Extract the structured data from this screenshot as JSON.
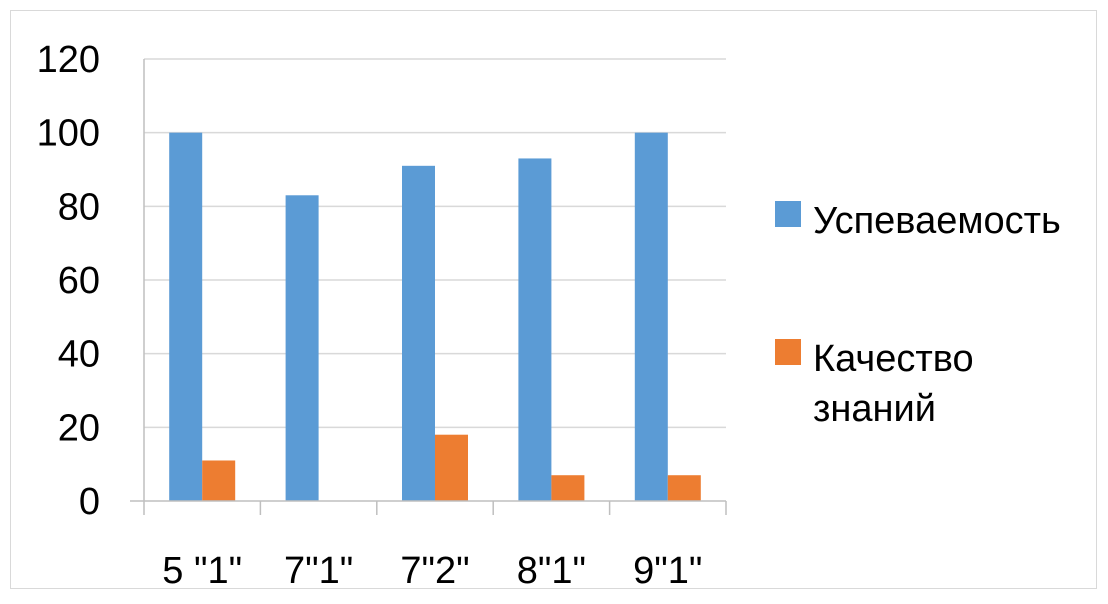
{
  "chart_data": {
    "type": "bar",
    "title": "",
    "xlabel": "",
    "ylabel": "",
    "categories": [
      "5 \"1\"",
      "7\"1\"",
      "7\"2\"",
      "8\"1\"",
      "9\"1\""
    ],
    "series": [
      {
        "name": "Успеваемость",
        "color": "#5B9BD5",
        "values": [
          100,
          83,
          91,
          93,
          100
        ]
      },
      {
        "name": "Качество знаний",
        "color": "#ED7D31",
        "values": [
          11,
          0,
          18,
          7,
          7
        ]
      }
    ],
    "ylim": [
      0,
      120
    ],
    "yticks": [
      "0",
      "20",
      "40",
      "60",
      "80",
      "100",
      "120"
    ],
    "grid": true,
    "legend_position": "right"
  }
}
